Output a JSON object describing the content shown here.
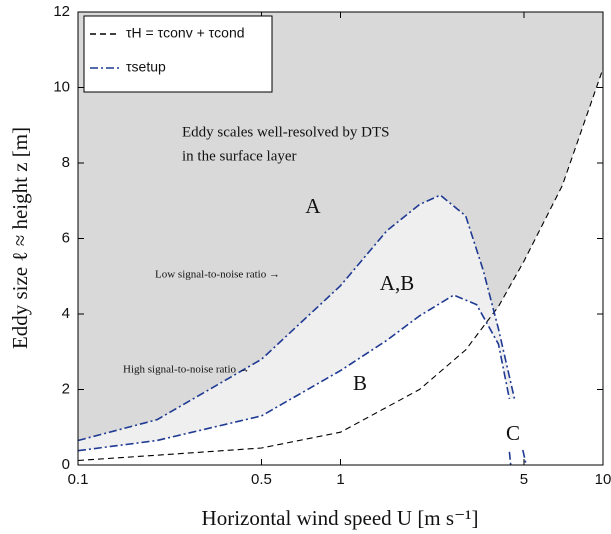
{
  "chart_data": {
    "type": "line",
    "xlabel": "Horizontal wind speed U [m s⁻¹]",
    "ylabel": "Eddy size ℓ ≈ height z [m]",
    "xscale": "log",
    "xlim": [
      0.1,
      10
    ],
    "xticks": [
      0.1,
      0.5,
      1,
      5,
      10
    ],
    "ylim": [
      0,
      12
    ],
    "yticks": [
      0,
      2,
      4,
      6,
      8,
      10,
      12
    ],
    "legend": "upper left",
    "series": [
      {
        "name": "τH = τconv + τcond",
        "color": "#000000",
        "style": "dashed",
        "x": [
          0.1,
          0.2,
          0.5,
          1,
          2,
          3,
          4,
          5,
          7,
          10
        ],
        "values": [
          0.12,
          0.26,
          0.45,
          0.87,
          2.0,
          3.05,
          4.2,
          5.4,
          7.4,
          10.5
        ]
      },
      {
        "name": "τsetup",
        "color": "#1f3a93",
        "style": "dashdot",
        "x": [
          0.1,
          0.2,
          0.5,
          1,
          1.5,
          2,
          2.4,
          3,
          3.5,
          4,
          4.6
        ],
        "values": [
          0.65,
          1.2,
          2.8,
          4.75,
          6.2,
          6.9,
          7.15,
          6.6,
          5.15,
          3.6,
          1.75
        ]
      },
      {
        "color": "#1f3a93",
        "style": "dashdot",
        "x": [
          0.1,
          0.2,
          0.5,
          1,
          1.5,
          2,
          2.7,
          3.3,
          4,
          4.4
        ],
        "values": [
          0.38,
          0.65,
          1.3,
          2.5,
          3.3,
          3.95,
          4.5,
          4.25,
          3.2,
          1.75
        ]
      },
      {
        "color": "#1f3a93",
        "style": "dashdot",
        "x": [
          4.4,
          4.45
        ],
        "values": [
          0.35,
          0
        ]
      },
      {
        "color": "#1f3a93",
        "style": "dashdot",
        "x": [
          4.95,
          5.1
        ],
        "values": [
          0.4,
          0
        ]
      }
    ],
    "annotations": [
      "Eddy scales well-resolved by DTS",
      "in the surface layer",
      "A",
      "A,B",
      "B",
      "C",
      "Low signal-to-noise ratio →",
      "High signal-to-noise ratio →"
    ]
  }
}
